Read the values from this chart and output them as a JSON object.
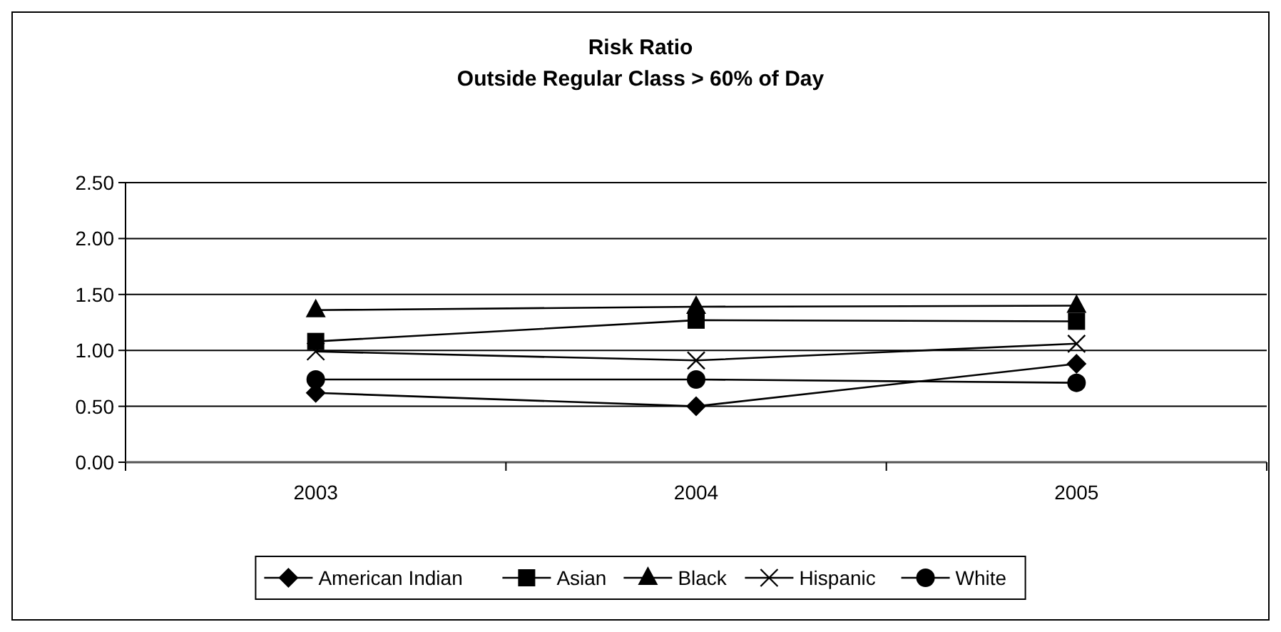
{
  "chart_data": {
    "type": "line",
    "title": "Risk Ratio\nOutside Regular Class > 60% of Day",
    "categories": [
      "2003",
      "2004",
      "2005"
    ],
    "series": [
      {
        "name": "American Indian",
        "color": "#000000",
        "marker": "diamond",
        "values": [
          0.62,
          0.5,
          0.88
        ]
      },
      {
        "name": "Asian",
        "color": "#000000",
        "marker": "square",
        "values": [
          1.08,
          1.27,
          1.26
        ]
      },
      {
        "name": "Black",
        "color": "#000000",
        "marker": "triangle",
        "values": [
          1.36,
          1.39,
          1.4
        ]
      },
      {
        "name": "Hispanic",
        "color": "#000000",
        "marker": "cross",
        "values": [
          0.99,
          0.91,
          1.06
        ]
      },
      {
        "name": "White",
        "color": "#000000",
        "marker": "circle",
        "values": [
          0.74,
          0.74,
          0.71
        ]
      }
    ],
    "ylim": [
      0,
      2.5
    ],
    "yticks": [
      {
        "value": 0,
        "label": "0.00"
      },
      {
        "value": 0.5,
        "label": "0.50"
      },
      {
        "value": 1,
        "label": "1.00"
      },
      {
        "value": 1.5,
        "label": "1.50"
      },
      {
        "value": 2,
        "label": "2.00"
      },
      {
        "value": 2.5,
        "label": "2.50"
      }
    ],
    "grid": "y",
    "legend": "bottom",
    "line_style": "solid"
  }
}
